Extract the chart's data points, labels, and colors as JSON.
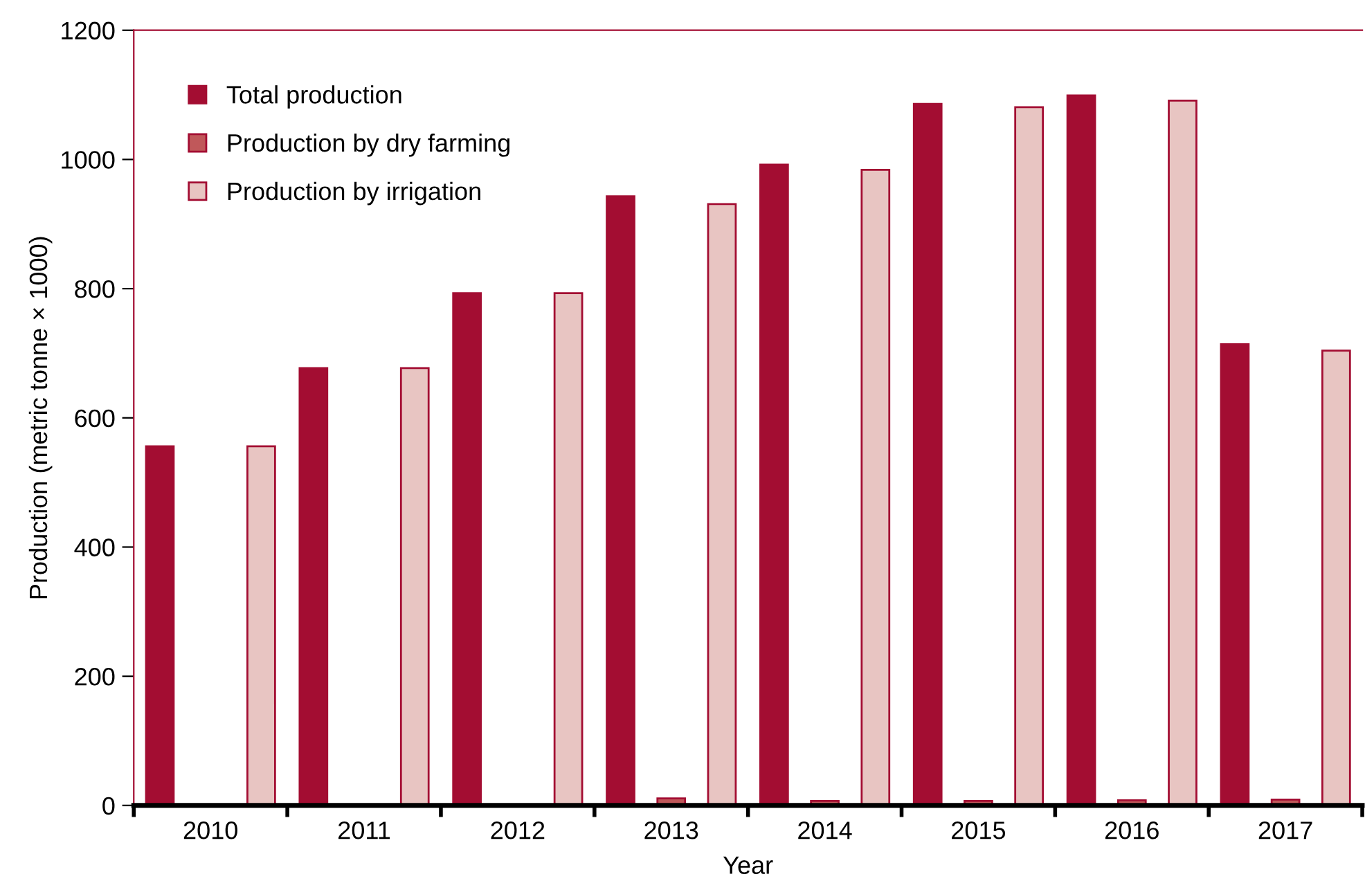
{
  "chart_data": {
    "type": "bar",
    "xlabel": "Year",
    "ylabel": "Production (metric tonne × 1000)",
    "categories": [
      "2010",
      "2011",
      "2012",
      "2013",
      "2014",
      "2015",
      "2016",
      "2017"
    ],
    "series": [
      {
        "name": "Total production",
        "color": "#a30d32",
        "values": [
          556,
          677,
          793,
          943,
          992,
          1086,
          1099,
          714
        ]
      },
      {
        "name": "Production by dry farming",
        "color": "#c0585a",
        "values": [
          null,
          null,
          null,
          11,
          7,
          7,
          8,
          9
        ]
      },
      {
        "name": "Production by irrigation",
        "color": "#e8c5c2",
        "values": [
          556,
          677,
          793,
          931,
          984,
          1081,
          1091,
          704
        ]
      }
    ],
    "ylim": [
      0,
      1200
    ],
    "yticks": [
      0,
      200,
      400,
      600,
      800,
      1000,
      1200
    ],
    "grid": false,
    "legend": "top left"
  }
}
